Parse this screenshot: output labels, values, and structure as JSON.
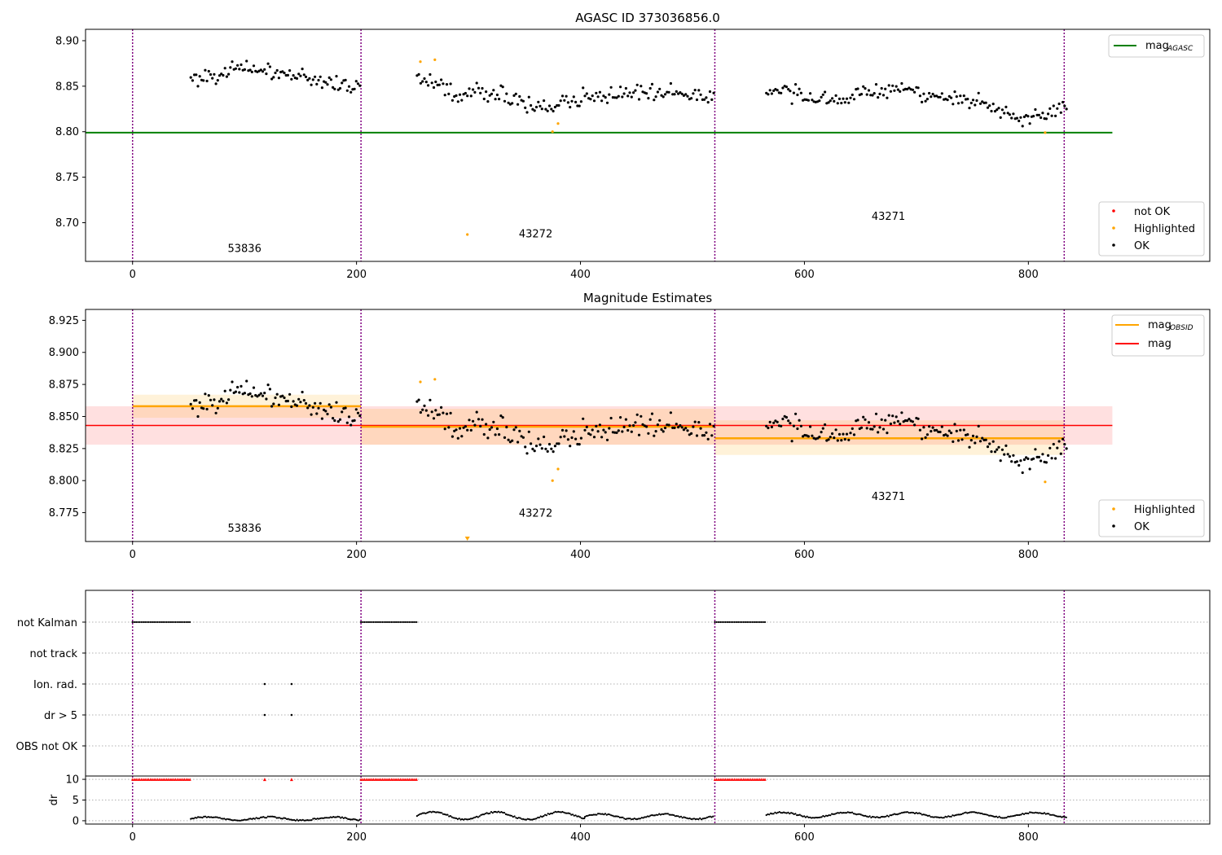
{
  "chart_data": [
    {
      "type": "scatter",
      "title": "AGASC ID 373036856.0",
      "xlim": [
        -42,
        962
      ],
      "ylim": [
        8.6575,
        8.9125
      ],
      "xticks": [
        0,
        200,
        400,
        600,
        800
      ],
      "yticks": [
        8.7,
        8.75,
        8.8,
        8.85,
        8.9
      ],
      "ytick_labels": [
        "8.70",
        "8.75",
        "8.80",
        "8.85",
        "8.90"
      ],
      "vlines": [
        0,
        204,
        520,
        832
      ],
      "hlines": [
        {
          "name": "mag_AGASC",
          "y": 8.799,
          "x0": -42,
          "x1": 875,
          "color": "#008000"
        }
      ],
      "segment_labels": [
        {
          "text": "53836",
          "x": 100,
          "y": 8.668
        },
        {
          "text": "43272",
          "x": 360,
          "y": 8.684
        },
        {
          "text": "43271",
          "x": 675,
          "y": 8.703
        }
      ],
      "series": [
        {
          "name": "not OK",
          "color": "#ff0000",
          "points": []
        },
        {
          "name": "Highlighted",
          "color": "#ffa500",
          "points": [
            [
              257,
              8.877
            ],
            [
              270,
              8.879
            ],
            [
              299,
              8.687
            ],
            [
              375,
              8.8
            ],
            [
              380,
              8.809
            ],
            [
              815,
              8.799
            ]
          ]
        },
        {
          "name": "OK",
          "color": "#000000",
          "segments": [
            {
              "x0": 52,
              "x1": 203,
              "n": 95,
              "base": [
                8.858,
                8.87,
                8.86,
                8.848
              ],
              "amp": 0.006
            },
            {
              "x0": 254,
              "x1": 519,
              "n": 160,
              "base": [
                8.862,
                8.84,
                8.843,
                8.826,
                8.838,
                8.845,
                8.844,
                8.838
              ],
              "amp": 0.007
            },
            {
              "x0": 566,
              "x1": 834,
              "n": 165,
              "base": [
                8.845,
                8.835,
                8.837,
                8.848,
                8.84,
                8.83,
                8.812,
                8.828
              ],
              "amp": 0.007
            }
          ]
        }
      ],
      "legend_upper": {
        "label_main": "mag",
        "label_sub": "AGASC",
        "position": "upper-right"
      },
      "legend_lower": {
        "entries": [
          "not OK",
          "Highlighted",
          "OK"
        ],
        "position": "lower-right"
      }
    },
    {
      "type": "scatter",
      "title": "Magnitude Estimates",
      "xlim": [
        -42,
        962
      ],
      "ylim": [
        8.7525,
        8.9335
      ],
      "xticks": [
        0,
        200,
        400,
        600,
        800
      ],
      "yticks": [
        8.775,
        8.8,
        8.825,
        8.85,
        8.875,
        8.9,
        8.925
      ],
      "ytick_labels": [
        "8.775",
        "8.800",
        "8.825",
        "8.850",
        "8.875",
        "8.900",
        "8.925"
      ],
      "vlines": [
        0,
        204,
        520,
        832
      ],
      "mag_band": {
        "y": 8.843,
        "lo": 8.828,
        "hi": 8.858,
        "x0": -42,
        "x1": 875,
        "color": "#ff0000"
      },
      "obsid_bands": [
        {
          "x0": 0,
          "x1": 204,
          "y": 8.858,
          "lo": 8.849,
          "hi": 8.867
        },
        {
          "x0": 204,
          "x1": 520,
          "y": 8.842,
          "lo": 8.828,
          "hi": 8.856
        },
        {
          "x0": 520,
          "x1": 832,
          "y": 8.833,
          "lo": 8.82,
          "hi": 8.847
        }
      ],
      "segment_labels": [
        {
          "text": "53836",
          "x": 100,
          "y": 8.76
        },
        {
          "text": "43272",
          "x": 360,
          "y": 8.772
        },
        {
          "text": "43271",
          "x": 675,
          "y": 8.785
        }
      ],
      "series": [
        {
          "name": "Highlighted",
          "color": "#ffa500",
          "points": [
            [
              257,
              8.877
            ],
            [
              270,
              8.879
            ],
            [
              375,
              8.8
            ],
            [
              380,
              8.809
            ],
            [
              815,
              8.799
            ]
          ],
          "arrow_below": [
            299
          ]
        },
        {
          "name": "OK",
          "color": "#000000",
          "segments": [
            {
              "x0": 52,
              "x1": 203,
              "n": 95,
              "base": [
                8.858,
                8.87,
                8.86,
                8.848
              ],
              "amp": 0.006
            },
            {
              "x0": 254,
              "x1": 519,
              "n": 160,
              "base": [
                8.862,
                8.84,
                8.843,
                8.826,
                8.838,
                8.845,
                8.844,
                8.838
              ],
              "amp": 0.007
            },
            {
              "x0": 566,
              "x1": 834,
              "n": 165,
              "base": [
                8.845,
                8.835,
                8.837,
                8.848,
                8.84,
                8.83,
                8.812,
                8.828
              ],
              "amp": 0.007
            }
          ]
        }
      ],
      "legend_upper": {
        "entries": [
          {
            "label_main": "mag",
            "label_sub": "OBSID",
            "color": "#ffa500"
          },
          {
            "label_main": "mag",
            "label_sub": "",
            "color": "#ff0000"
          }
        ],
        "position": "upper-right"
      },
      "legend_lower": {
        "entries": [
          "Highlighted",
          "OK"
        ],
        "position": "lower-right"
      }
    },
    {
      "type": "scatter",
      "title": "",
      "xlim": [
        -42,
        962
      ],
      "categories": [
        "not Kalman",
        "not track",
        "Ion. rad.",
        "dr > 5",
        "OBS not OK"
      ],
      "vlines": [
        0,
        204,
        520,
        832
      ],
      "flag_runs": [
        {
          "category": "not Kalman",
          "ranges": [
            [
              0,
              52
            ],
            [
              204,
              254
            ],
            [
              520,
              566
            ]
          ]
        },
        {
          "category": "Ion. rad.",
          "points": [
            118,
            142
          ]
        },
        {
          "category": "dr > 5",
          "points": [
            118,
            142
          ]
        }
      ]
    },
    {
      "type": "scatter",
      "title": "",
      "xlim": [
        -42,
        962
      ],
      "ylim": [
        -0.8,
        10.8
      ],
      "ylabel": "dr",
      "xticks": [
        0,
        200,
        400,
        600,
        800
      ],
      "yticks": [
        0,
        5,
        10
      ],
      "ytick_labels": [
        "0",
        "5",
        "10"
      ],
      "vlines": [
        0,
        204,
        520,
        832
      ],
      "clipped": {
        "value": 10,
        "color": "#ff0000",
        "ranges": [
          [
            0,
            52
          ],
          [
            204,
            254
          ],
          [
            520,
            566
          ]
        ],
        "points": [
          118,
          142
        ]
      },
      "dr_segments": [
        {
          "x0": 52,
          "x1": 203,
          "base": 0.5,
          "amp": 0.4
        },
        {
          "x0": 254,
          "x1": 404,
          "base": 1.2,
          "amp": 0.9
        },
        {
          "x0": 404,
          "x1": 519,
          "base": 1.0,
          "amp": 0.6
        },
        {
          "x0": 566,
          "x1": 834,
          "base": 1.4,
          "amp": 0.6
        }
      ]
    }
  ]
}
